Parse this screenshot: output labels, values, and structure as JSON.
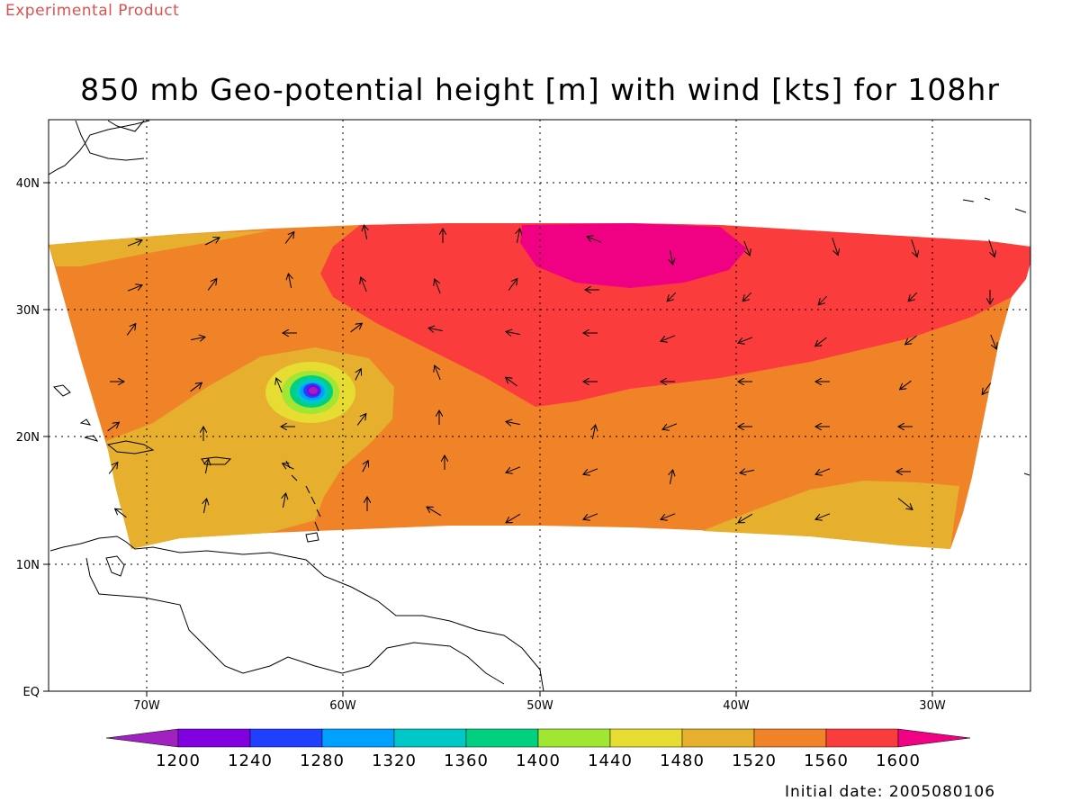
{
  "header": {
    "tag": "Experimental Product",
    "title": "850 mb Geo-potential height [m] with wind [kts] for 108hr",
    "initial_date": "Initial date: 2005080106"
  },
  "map": {
    "lat_labels": [
      "40N",
      "30N",
      "20N",
      "10N",
      "EQ"
    ],
    "lon_labels": [
      "70W",
      "60W",
      "50W",
      "40W",
      "30W"
    ]
  },
  "legend": {
    "levels": [
      "1200",
      "1240",
      "1280",
      "1320",
      "1360",
      "1400",
      "1440",
      "1480",
      "1520",
      "1560",
      "1600"
    ],
    "colors": [
      "#a020c0",
      "#8000e0",
      "#2040ff",
      "#00a0ff",
      "#00c8c8",
      "#00d080",
      "#a0e632",
      "#e6dc32",
      "#e6af2d",
      "#f08228",
      "#fa3c3c",
      "#f00082"
    ]
  },
  "colors": {
    "tag": "#e05050",
    "band_1480_1520": "#e6af2d",
    "band_1520_1560": "#f08228",
    "band_1560_1600": "#fa3c3c",
    "band_above_1600": "#f00082"
  }
}
